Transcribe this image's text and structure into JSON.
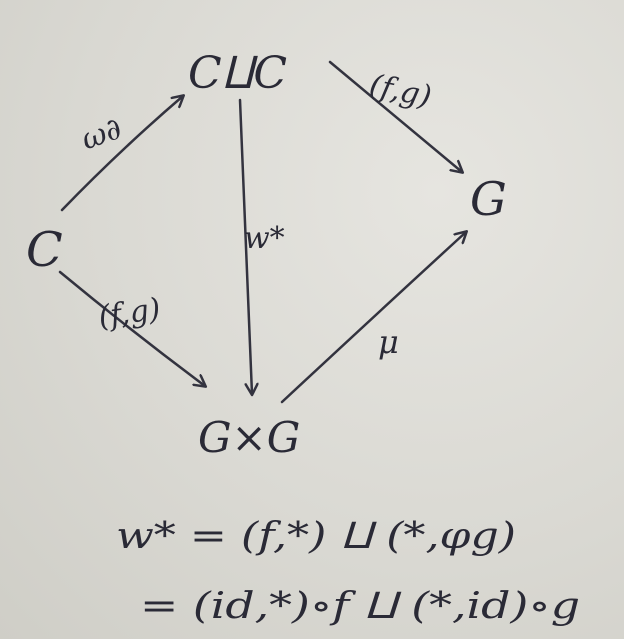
{
  "diagram": {
    "nodes": {
      "coproduct": "C⨿C",
      "source": "C",
      "target": "G",
      "product": "G×G"
    },
    "arrows": {
      "codiag": "ω∂",
      "top_pair": "(f,g)",
      "left_pair": "(f,g)",
      "w_star": "w*",
      "mult": "μ"
    },
    "equations": {
      "line1": "w* = (f,*) ⨿ (*,φg)",
      "line2": "= (id,*)∘f ⨿ (*,id)∘g"
    }
  }
}
